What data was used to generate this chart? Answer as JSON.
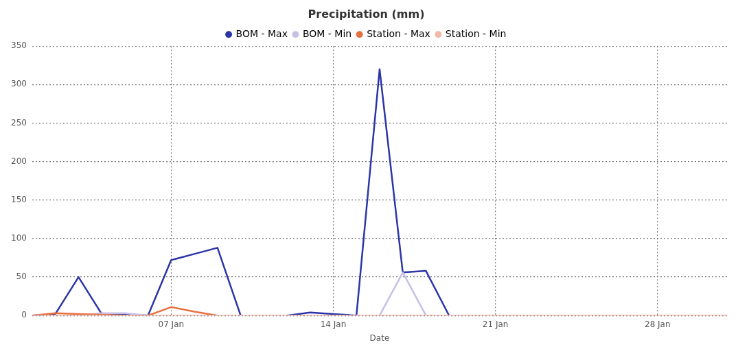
{
  "chart_data": {
    "type": "line",
    "title": "Precipitation (mm)",
    "xlabel": "Date",
    "x": [
      "--01-01",
      "--01-02",
      "--01-03",
      "--01-04",
      "--01-05",
      "--01-06",
      "--01-07",
      "--01-08",
      "--01-09",
      "--01-10",
      "--01-11",
      "--01-12",
      "--01-13",
      "--01-14",
      "--01-15",
      "--01-16",
      "--01-17",
      "--01-18",
      "--01-19",
      "--01-20",
      "--01-21",
      "--01-22",
      "--01-23",
      "--01-24",
      "--01-25",
      "--01-26",
      "--01-27",
      "--01-28",
      "--01-29",
      "--01-30",
      "--01-31"
    ],
    "series": [
      {
        "name": "BOM - Max",
        "color": "#2b35a8",
        "values": [
          0,
          2,
          50,
          2,
          2,
          0,
          72,
          80,
          88,
          0,
          null,
          0,
          4,
          2,
          0,
          320,
          56,
          58,
          0,
          null,
          null,
          null,
          null,
          null,
          null,
          null,
          null,
          null,
          null,
          null,
          null
        ]
      },
      {
        "name": "BOM - Min",
        "color": "#c7bfe6",
        "values": [
          null,
          null,
          0,
          3,
          3,
          0,
          null,
          null,
          null,
          null,
          null,
          null,
          null,
          null,
          null,
          0,
          56,
          0,
          null,
          null,
          null,
          null,
          null,
          null,
          null,
          null,
          null,
          null,
          null,
          null,
          null
        ]
      },
      {
        "name": "Station - Max",
        "color": "#e8703f",
        "values": [
          0,
          3,
          2,
          1,
          0,
          0,
          11,
          5,
          0,
          null,
          null,
          null,
          null,
          null,
          null,
          null,
          null,
          null,
          null,
          null,
          null,
          null,
          null,
          null,
          null,
          null,
          null,
          null,
          null,
          null,
          null
        ]
      },
      {
        "name": "Station - Min",
        "color": "#f2b8a8",
        "values": [
          0,
          0,
          0,
          0,
          0,
          0,
          0,
          0,
          0,
          0,
          0,
          0,
          0,
          0,
          0,
          0,
          0,
          0,
          0,
          0,
          0,
          0,
          0,
          0,
          0,
          0,
          0,
          0,
          0,
          0,
          0
        ]
      }
    ],
    "xlim": [
      "--01-01",
      "--01-31"
    ],
    "xticks": [
      {
        "value": "--01-07",
        "label": "07 Jan"
      },
      {
        "value": "--01-14",
        "label": "14 Jan"
      },
      {
        "value": "--01-21",
        "label": "21 Jan"
      },
      {
        "value": "--01-28",
        "label": "28 Jan"
      }
    ],
    "ylim": [
      0,
      350
    ],
    "yticks": [
      0,
      50,
      100,
      150,
      200,
      250,
      300,
      350
    ],
    "grid": true,
    "legend": "top",
    "marker": "none",
    "line_style": "solid"
  }
}
